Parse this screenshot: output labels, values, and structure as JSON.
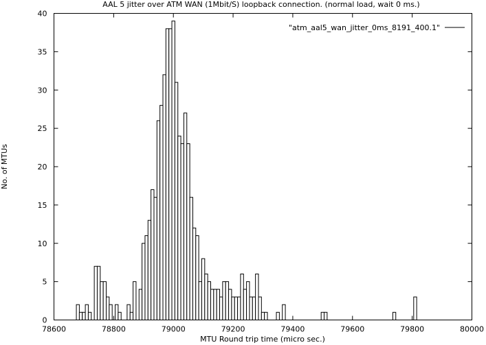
{
  "chart_data": {
    "type": "bar",
    "title": "AAL 5 jitter over ATM WAN (1Mbit/S) loopback connection. (normal load, wait 0 ms.)",
    "xlabel": "MTU Round trip time (micro sec.)",
    "ylabel": "No. of MTUs",
    "xlim": [
      78600,
      80000
    ],
    "ylim": [
      0,
      40
    ],
    "x_ticks": [
      "78600",
      "78800",
      "79000",
      "79200",
      "79400",
      "79600",
      "79800",
      "80000"
    ],
    "y_ticks": [
      "0",
      "5",
      "10",
      "15",
      "20",
      "25",
      "30",
      "35",
      "40"
    ],
    "bin_width": 10,
    "legend_position": "top-right",
    "grid": false,
    "series": [
      {
        "name": "\"atm_aal5_wan_jitter_0ms_8191_400.1\"",
        "points": [
          [
            78680,
            2
          ],
          [
            78690,
            1
          ],
          [
            78700,
            1
          ],
          [
            78710,
            2
          ],
          [
            78720,
            1
          ],
          [
            78740,
            7
          ],
          [
            78750,
            7
          ],
          [
            78760,
            5
          ],
          [
            78770,
            5
          ],
          [
            78780,
            3
          ],
          [
            78790,
            2
          ],
          [
            78810,
            2
          ],
          [
            78820,
            1
          ],
          [
            78850,
            2
          ],
          [
            78860,
            1
          ],
          [
            78870,
            5
          ],
          [
            78890,
            4
          ],
          [
            78900,
            10
          ],
          [
            78910,
            11
          ],
          [
            78920,
            13
          ],
          [
            78930,
            17
          ],
          [
            78940,
            16
          ],
          [
            78950,
            26
          ],
          [
            78960,
            28
          ],
          [
            78970,
            32
          ],
          [
            78980,
            38
          ],
          [
            78990,
            38
          ],
          [
            79000,
            39
          ],
          [
            79010,
            31
          ],
          [
            79020,
            24
          ],
          [
            79030,
            23
          ],
          [
            79040,
            27
          ],
          [
            79050,
            23
          ],
          [
            79060,
            16
          ],
          [
            79070,
            12
          ],
          [
            79080,
            11
          ],
          [
            79090,
            5
          ],
          [
            79100,
            8
          ],
          [
            79110,
            6
          ],
          [
            79120,
            5
          ],
          [
            79130,
            4
          ],
          [
            79140,
            4
          ],
          [
            79150,
            4
          ],
          [
            79160,
            3
          ],
          [
            79170,
            5
          ],
          [
            79180,
            5
          ],
          [
            79190,
            4
          ],
          [
            79200,
            3
          ],
          [
            79210,
            3
          ],
          [
            79220,
            3
          ],
          [
            79230,
            6
          ],
          [
            79240,
            4
          ],
          [
            79250,
            5
          ],
          [
            79260,
            3
          ],
          [
            79270,
            3
          ],
          [
            79280,
            6
          ],
          [
            79290,
            3
          ],
          [
            79300,
            1
          ],
          [
            79310,
            1
          ],
          [
            79350,
            1
          ],
          [
            79370,
            2
          ],
          [
            79500,
            1
          ],
          [
            79510,
            1
          ],
          [
            79740,
            1
          ],
          [
            79810,
            3
          ]
        ]
      }
    ]
  }
}
